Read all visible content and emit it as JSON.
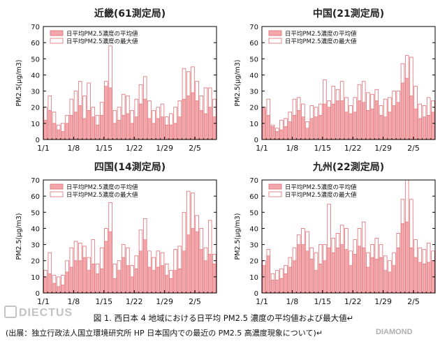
{
  "caption_line1": "図 1. 西日本 4 地域における日平均 PM2.5 濃度の平均値および最大値↵",
  "caption_line2": "(出展：独立行政法人国立環境研究所 HP 日本国内での最近の PM2.5 高濃度現象について)↵",
  "watermark_text": "DIECTUS",
  "logo_text": "DIAMOND",
  "colors": {
    "mean_fill": "#f4a7aa",
    "mean_stroke": "#e06b72",
    "max_fill": "#ffffff",
    "max_stroke": "#e06b72"
  },
  "chart_data": [
    {
      "type": "bar",
      "title": "近畿(61測定局)",
      "ylabel": "PM2.5(μg/m3)",
      "ylim": [
        0,
        70
      ],
      "yticks": [
        0,
        10,
        20,
        30,
        40,
        50,
        60,
        70
      ],
      "xtick_labels": [
        "1/1",
        "1/8",
        "1/15",
        "1/22",
        "1/29",
        "2/5"
      ],
      "legend": [
        "日平均PM2.5濃度の平均値",
        "日平均PM2.5濃度の最大値"
      ],
      "series": [
        {
          "name": "日平均PM2.5濃度の平均値",
          "values": [
            12,
            18,
            10,
            6,
            5,
            10,
            15,
            17,
            21,
            13,
            18,
            14,
            9,
            15,
            33,
            32,
            10,
            12,
            15,
            16,
            10,
            14,
            22,
            25,
            13,
            10,
            13,
            14,
            9,
            9,
            10,
            14,
            25,
            27,
            29,
            24,
            18,
            16,
            20,
            14
          ]
        },
        {
          "name": "日平均PM2.5濃度の最大値",
          "values": [
            20,
            27,
            17,
            9,
            10,
            15,
            25,
            30,
            36,
            27,
            35,
            20,
            15,
            23,
            36,
            58,
            18,
            20,
            28,
            27,
            18,
            25,
            34,
            39,
            24,
            18,
            20,
            22,
            14,
            16,
            20,
            24,
            44,
            42,
            45,
            36,
            27,
            32,
            32,
            25
          ]
        }
      ]
    },
    {
      "type": "bar",
      "title": "中国(21測定局)",
      "ylabel": "PM2.5(μg/m3)",
      "ylim": [
        0,
        70
      ],
      "yticks": [
        0,
        10,
        20,
        30,
        40,
        50,
        60,
        70
      ],
      "xtick_labels": [
        "1/1",
        "1/8",
        "1/15",
        "1/22",
        "1/29",
        "2/5"
      ],
      "legend": [
        "日平均PM2.5濃度の平均値",
        "日平均PM2.5濃度の最大値"
      ],
      "series": [
        {
          "name": "日平均PM2.5濃度の平均値",
          "values": [
            20,
            15,
            8,
            5,
            6,
            8,
            11,
            15,
            18,
            14,
            7,
            13,
            14,
            15,
            22,
            20,
            22,
            24,
            24,
            17,
            16,
            17,
            24,
            23,
            18,
            19,
            24,
            15,
            14,
            17,
            21,
            23,
            35,
            38,
            27,
            19,
            13,
            14,
            15,
            17
          ]
        },
        {
          "name": "日平均PM2.5濃度の最大値",
          "values": [
            18,
            25,
            9,
            7,
            12,
            13,
            17,
            25,
            26,
            22,
            11,
            21,
            20,
            22,
            37,
            24,
            33,
            31,
            36,
            26,
            21,
            26,
            34,
            36,
            29,
            28,
            31,
            21,
            25,
            26,
            30,
            30,
            47,
            52,
            51,
            33,
            22,
            21,
            26,
            24
          ]
        }
      ]
    },
    {
      "type": "bar",
      "title": "四国(14測定局)",
      "ylabel": "PM2.5(μg/m3)",
      "ylim": [
        0,
        70
      ],
      "yticks": [
        0,
        10,
        20,
        30,
        40,
        50,
        60,
        70
      ],
      "xtick_labels": [
        "1/1",
        "1/8",
        "1/15",
        "1/22",
        "1/29",
        "2/5"
      ],
      "legend": [
        "日平均PM2.5濃度の平均値",
        "日平均PM2.5濃度の最大値"
      ],
      "series": [
        {
          "name": "日平均PM2.5濃度の平均値",
          "values": [
            10,
            12,
            6,
            4,
            5,
            13,
            16,
            20,
            20,
            22,
            14,
            18,
            12,
            15,
            32,
            38,
            9,
            14,
            22,
            17,
            10,
            15,
            26,
            33,
            16,
            14,
            16,
            17,
            11,
            9,
            14,
            15,
            26,
            36,
            40,
            38,
            27,
            20,
            24,
            18
          ]
        },
        {
          "name": "日平均PM2.5濃度の最大値",
          "values": [
            14,
            25,
            11,
            10,
            11,
            20,
            28,
            32,
            31,
            29,
            22,
            33,
            18,
            28,
            40,
            56,
            18,
            20,
            30,
            28,
            17,
            23,
            39,
            46,
            26,
            22,
            26,
            25,
            18,
            14,
            27,
            29,
            50,
            63,
            62,
            48,
            40,
            28,
            45,
            24
          ]
        }
      ]
    },
    {
      "type": "bar",
      "title": "九州(22測定局)",
      "ylabel": "PM2.5(μg/m3)",
      "ylim": [
        0,
        70
      ],
      "yticks": [
        0,
        10,
        20,
        30,
        40,
        50,
        60,
        70
      ],
      "xtick_labels": [
        "1/1",
        "1/8",
        "1/15",
        "1/22",
        "1/29",
        "2/5"
      ],
      "legend": [
        "日平均PM2.5濃度の平均値",
        "日平均PM2.5濃度の最大値"
      ],
      "series": [
        {
          "name": "日平均PM2.5濃度の平均値",
          "values": [
            17,
            23,
            8,
            8,
            9,
            12,
            16,
            20,
            30,
            30,
            26,
            21,
            14,
            18,
            20,
            28,
            25,
            28,
            30,
            27,
            17,
            24,
            29,
            28,
            16,
            22,
            21,
            22,
            14,
            13,
            17,
            28,
            43,
            44,
            28,
            22,
            19,
            18,
            19,
            20
          ]
        },
        {
          "name": "日平均PM2.5濃度の最大値",
          "values": [
            20,
            27,
            12,
            14,
            15,
            17,
            22,
            28,
            36,
            40,
            38,
            28,
            25,
            30,
            30,
            55,
            34,
            37,
            42,
            40,
            26,
            33,
            40,
            44,
            25,
            30,
            34,
            30,
            23,
            20,
            25,
            37,
            58,
            70,
            58,
            33,
            28,
            27,
            31,
            26
          ]
        }
      ]
    }
  ]
}
